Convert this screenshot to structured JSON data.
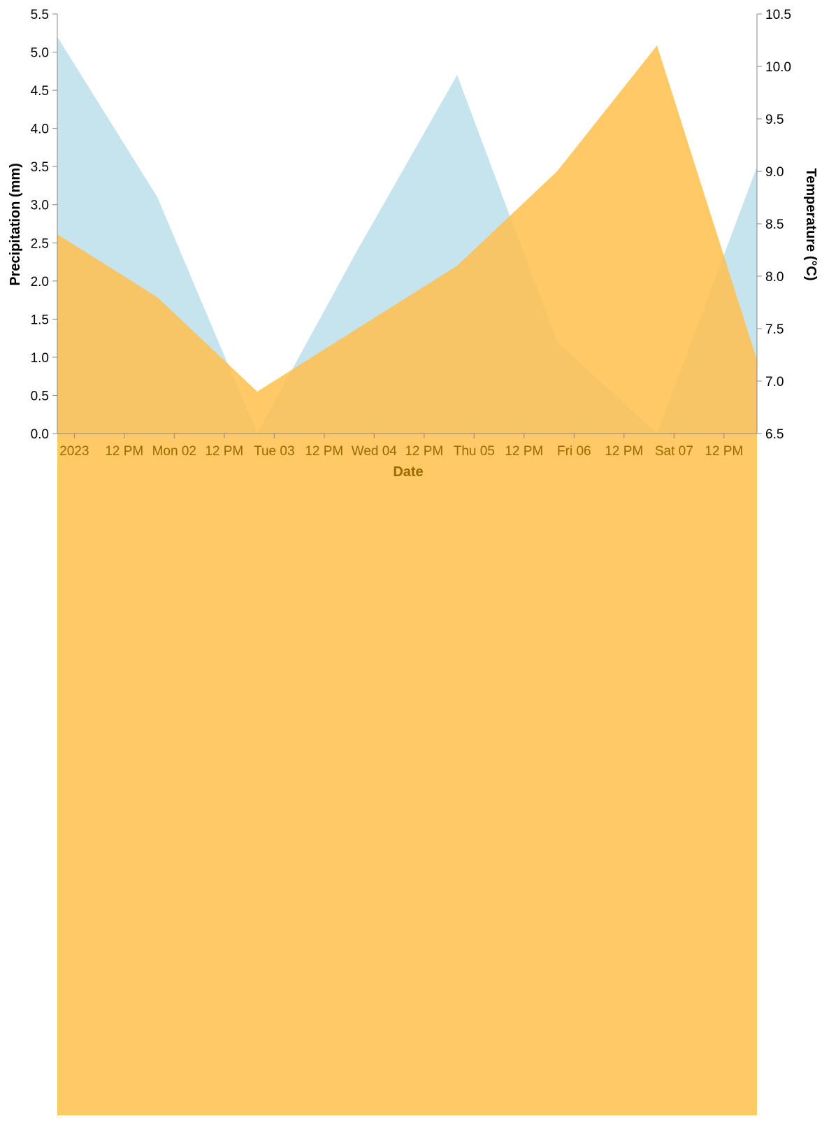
{
  "chart_data": {
    "type": "area",
    "xlabel": "Date",
    "x": [
      "2023-01-01",
      "2023-01-02",
      "2023-01-03",
      "2023-01-04",
      "2023-01-05",
      "2023-01-06",
      "2023-01-07",
      "2023-01-08"
    ],
    "x_tick_labels": [
      "2023",
      "12 PM",
      "Mon 02",
      "12 PM",
      "Tue 03",
      "12 PM",
      "Wed 04",
      "12 PM",
      "Thu 05",
      "12 PM",
      "Fri 06",
      "12 PM",
      "Sat 07",
      "12 PM"
    ],
    "series": [
      {
        "axis": "left",
        "values": [
          5.2,
          3.1,
          0.0,
          2.4,
          4.7,
          1.2,
          0.0,
          3.5
        ],
        "color": "#add8e6",
        "opacity": 0.7,
        "area_extends_to_bottom": false
      },
      {
        "axis": "right",
        "values": [
          8.4,
          7.8,
          6.9,
          7.5,
          8.1,
          9.0,
          10.2,
          7.2
        ],
        "color": "#ffc04c",
        "opacity": 0.85,
        "area_extends_to_bottom": true
      }
    ],
    "y_left": {
      "label": "Precipitation (mm)",
      "ylim": [
        0,
        5.5
      ],
      "ticks": [
        "0.0",
        "0.5",
        "1.0",
        "1.5",
        "2.0",
        "2.5",
        "3.0",
        "3.5",
        "4.0",
        "4.5",
        "5.0",
        "5.5"
      ]
    },
    "y_right": {
      "label": "Temperature (°C)",
      "ylim": [
        6.5,
        10.5
      ],
      "ticks": [
        "6.5",
        "7.0",
        "7.5",
        "8.0",
        "8.5",
        "9.0",
        "9.5",
        "10.0",
        "10.5"
      ]
    },
    "x_axis_color": "#9a6a00",
    "axis_color": "#888888",
    "grid": false
  }
}
